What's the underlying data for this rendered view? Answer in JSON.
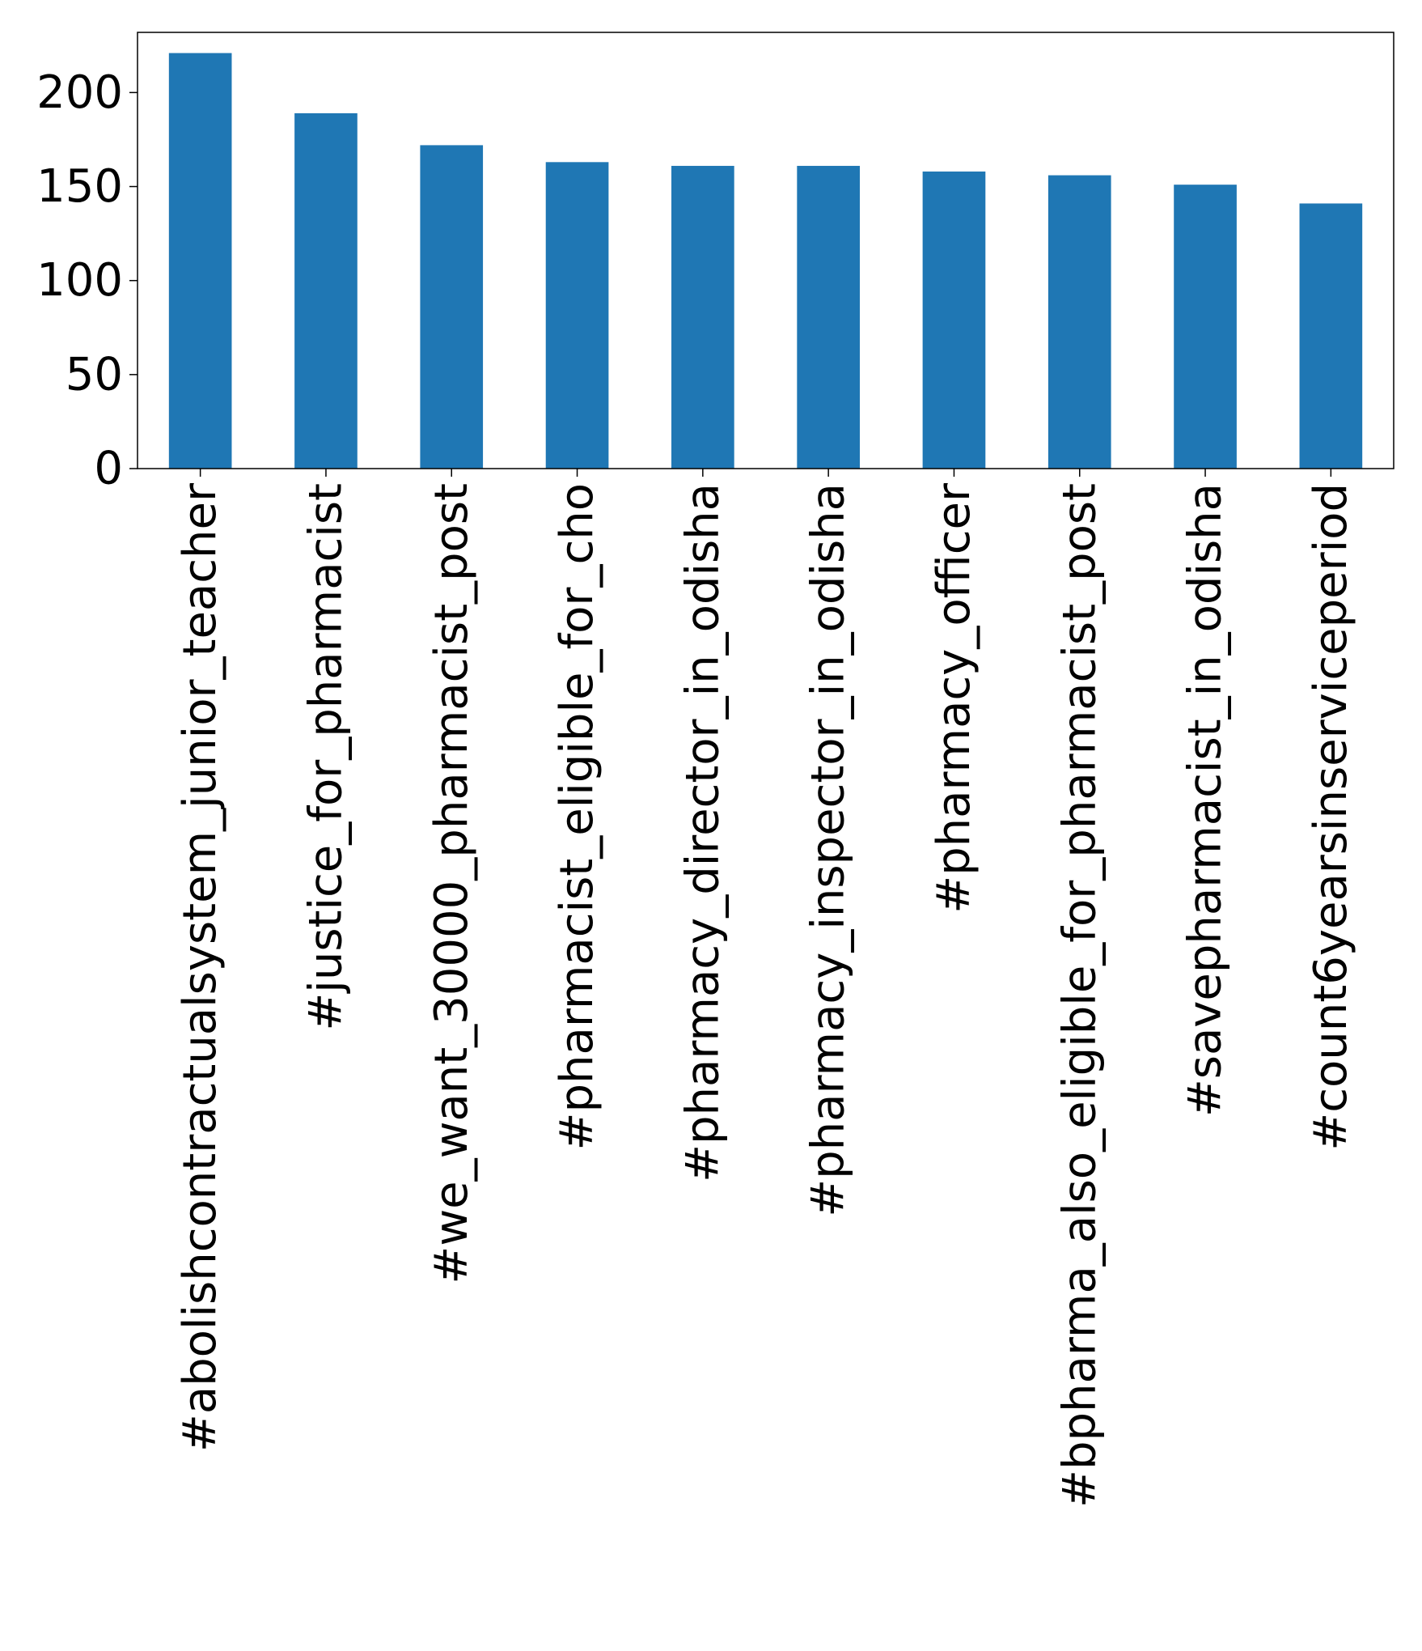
{
  "chart_data": {
    "type": "bar",
    "title": "",
    "xlabel": "",
    "ylabel": "",
    "categories": [
      "#abolishcontractualsystem_junior_teacher",
      "#justice_for_pharmacist",
      "#we_want_30000_pharmacist_post",
      "#pharmacist_eligible_for_cho",
      "#pharmacy_director_in_odisha",
      "#pharmacy_inspector_in_odisha",
      "#pharmacy_officer",
      "#bpharma_also_eligible_for_pharmacist_post",
      "#savepharmacist_in_odisha",
      "#count6yearsinserviceperiod"
    ],
    "values": [
      221,
      189,
      172,
      163,
      161,
      161,
      158,
      156,
      151,
      141
    ],
    "ylim": [
      0,
      232
    ],
    "yticks": [
      0,
      50,
      100,
      150,
      200
    ],
    "ytick_labels": [
      "0",
      "50",
      "100",
      "150",
      "200"
    ],
    "bar_color": "#1f77b4",
    "grid": false,
    "legend": "none"
  }
}
